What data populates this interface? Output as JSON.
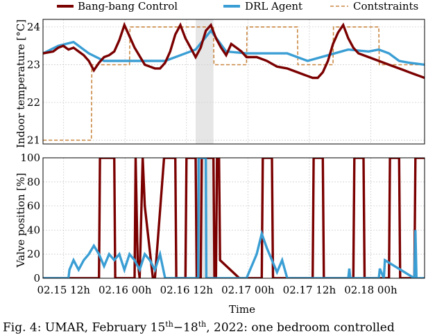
{
  "caption": {
    "prefix": "Fig. 4: UMAR, February 15",
    "sup1": "th",
    "mid": "−18",
    "sup2": "th",
    "suffix": ", 2022: one bedroom controlled"
  },
  "colors": {
    "bang_bang": "#7b0000",
    "drl": "#3a9ed4",
    "constraints": "#c98640",
    "shade": "#e6e6e6",
    "grid": "#cfcfcf"
  },
  "chart_data": [
    {
      "type": "line",
      "ylabel": "Indoor temperature [°C]",
      "xlabel": "",
      "xlim": [
        0,
        75
      ],
      "ylim": [
        20.9,
        24.2
      ],
      "yticks": [
        21,
        22,
        23,
        24
      ],
      "highlight_x": [
        30,
        33.5
      ],
      "legend": [
        "Bang-bang Control",
        "DRL Agent",
        "Contstraints"
      ],
      "series": [
        {
          "name": "Bang-bang Control",
          "x": [
            0,
            2,
            3,
            4,
            5,
            6,
            7,
            8,
            9,
            10,
            11,
            12,
            13,
            14,
            15,
            16,
            17,
            18,
            20,
            21,
            22,
            23,
            24,
            25,
            26,
            27,
            28,
            29,
            30,
            31,
            32,
            33,
            34,
            35,
            36,
            37,
            38,
            39,
            40,
            42,
            44,
            46,
            48,
            49,
            50,
            51,
            52,
            53,
            54,
            55,
            56,
            57,
            58,
            59,
            60,
            61,
            62,
            64,
            66,
            68,
            70,
            71,
            72,
            73,
            74,
            75
          ],
          "values": [
            23.3,
            23.35,
            23.45,
            23.5,
            23.4,
            23.45,
            23.35,
            23.25,
            23.1,
            22.85,
            23.05,
            23.2,
            23.25,
            23.35,
            23.65,
            24.05,
            23.75,
            23.45,
            23.0,
            22.95,
            22.9,
            22.9,
            23.05,
            23.35,
            23.8,
            24.05,
            23.7,
            23.45,
            23.2,
            23.45,
            23.9,
            24.05,
            23.7,
            23.45,
            23.25,
            23.55,
            23.45,
            23.35,
            23.2,
            23.2,
            23.1,
            22.95,
            22.9,
            22.85,
            22.8,
            22.75,
            22.7,
            22.65,
            22.65,
            22.8,
            23.1,
            23.55,
            23.85,
            24.05,
            23.7,
            23.45,
            23.3,
            23.2,
            23.1,
            23.0,
            22.9,
            22.85,
            22.8,
            22.75,
            22.7,
            22.65
          ]
        },
        {
          "name": "DRL Agent",
          "x": [
            0,
            3,
            6,
            9,
            12,
            15,
            18,
            21,
            24,
            27,
            30,
            33,
            36,
            40,
            44,
            48,
            52,
            56,
            60,
            64,
            66,
            68,
            70,
            72,
            75
          ],
          "values": [
            23.3,
            23.5,
            23.6,
            23.3,
            23.1,
            23.1,
            23.1,
            23.1,
            23.1,
            23.25,
            23.4,
            23.9,
            23.35,
            23.3,
            23.3,
            23.3,
            23.1,
            23.25,
            23.4,
            23.35,
            23.4,
            23.3,
            23.1,
            23.05,
            23.0
          ]
        },
        {
          "name": "Contstraints",
          "x": [
            0,
            8,
            9,
            9.5,
            9.6,
            17,
            17.1,
            24,
            24.1,
            33.5,
            33.6,
            40,
            40.1,
            50,
            50.1,
            57,
            57.1,
            66,
            66.1,
            75
          ],
          "values": [
            21.0,
            21.0,
            21.0,
            21.0,
            23.0,
            23.0,
            24.0,
            24.0,
            24.0,
            24.0,
            23.0,
            23.0,
            24.0,
            24.0,
            23.0,
            23.0,
            24.0,
            24.0,
            23.0,
            23.0
          ]
        }
      ]
    },
    {
      "type": "line",
      "ylabel": "Valve position [%]",
      "xlabel": "Time",
      "xlim": [
        0,
        75
      ],
      "ylim": [
        0,
        100
      ],
      "yticks": [
        0,
        20,
        40,
        60,
        80,
        100
      ],
      "categories": [
        "02.15 12h",
        "02.16 00h",
        "02.16 12h",
        "02.17 00h",
        "02.17 12h",
        "02.18 00h"
      ],
      "highlight_x": [
        30,
        33.5
      ],
      "series": [
        {
          "name": "Bang-bang Control",
          "x": [
            0,
            11.0,
            11.2,
            11.8,
            12.0,
            14.0,
            14.2,
            18.0,
            18.2,
            18.6,
            19.0,
            19.6,
            20.0,
            21.6,
            22.0,
            23.8,
            24.0,
            26.0,
            26.2,
            28.0,
            28.2,
            30.0,
            30.2,
            31.0,
            31.2,
            33.5,
            33.7,
            34.0,
            34.2,
            34.6,
            34.8,
            38.6,
            39.0,
            39.4,
            40.0,
            43.0,
            43.2,
            45.0,
            45.2,
            53.0,
            53.2,
            55.0,
            55.2,
            61.0,
            61.2,
            63.0,
            63.2,
            68.0,
            68.2,
            70.0,
            70.2,
            73.0,
            73.2,
            75.0
          ],
          "values": [
            0,
            0,
            100,
            100,
            100,
            100,
            0,
            0,
            100,
            15,
            0,
            100,
            60,
            0,
            0,
            100,
            100,
            100,
            0,
            0,
            100,
            100,
            0,
            0,
            100,
            100,
            0,
            0,
            100,
            100,
            15,
            0,
            0,
            0,
            0,
            0,
            100,
            100,
            0,
            0,
            100,
            100,
            0,
            0,
            100,
            100,
            0,
            0,
            100,
            100,
            0,
            0,
            100,
            100
          ]
        },
        {
          "name": "DRL Agent",
          "x": [
            0,
            5,
            5.2,
            6,
            7,
            8,
            9,
            10,
            11,
            12,
            13,
            14,
            15,
            16,
            17,
            18,
            19,
            20,
            21,
            22,
            23,
            24,
            25,
            25.5,
            26,
            26.5,
            27,
            30.5,
            30.6,
            32,
            32.1,
            40,
            41,
            42,
            43,
            44,
            45,
            46,
            47,
            48,
            60,
            60.2,
            60.4,
            66,
            66.2,
            67,
            67.2,
            73,
            73.2,
            73.4,
            75
          ],
          "values": [
            0,
            0,
            7,
            15,
            7,
            15,
            20,
            27,
            20,
            10,
            20,
            15,
            20,
            7,
            20,
            15,
            7,
            20,
            15,
            7,
            20,
            0,
            0,
            0,
            0,
            0,
            0,
            0,
            100,
            100,
            0,
            0,
            10,
            20,
            37,
            25,
            15,
            5,
            15,
            0,
            0,
            8,
            0,
            0,
            8,
            0,
            15,
            0,
            40,
            0,
            0
          ]
        }
      ]
    }
  ]
}
